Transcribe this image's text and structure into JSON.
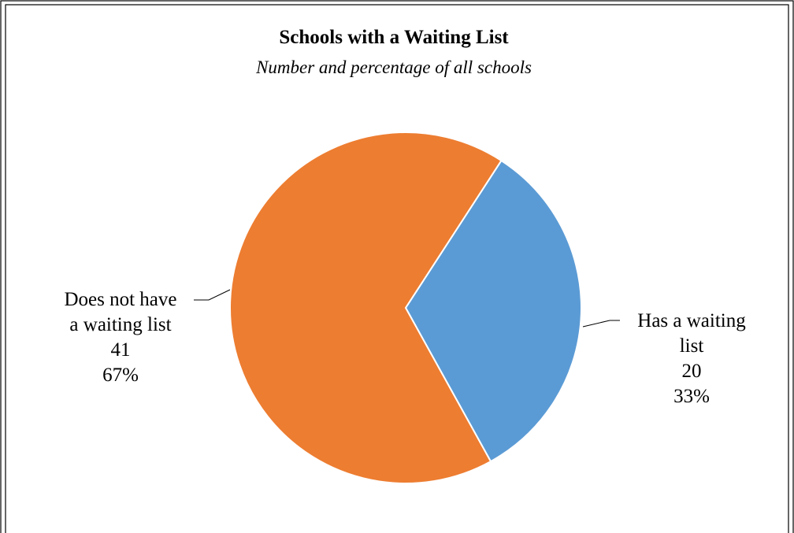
{
  "chart_data": {
    "type": "pie",
    "title": "Schools with a Waiting List",
    "subtitle": "Number and percentage of all schools",
    "slices": [
      {
        "label_lines": [
          "Has a waiting",
          "list"
        ],
        "value": 20,
        "percent": "33%",
        "color": "#5B9BD5"
      },
      {
        "label_lines": [
          "Does not have",
          "a waiting list"
        ],
        "value": 41,
        "percent": "67%",
        "color": "#ED7D31"
      }
    ],
    "legend": "none"
  }
}
